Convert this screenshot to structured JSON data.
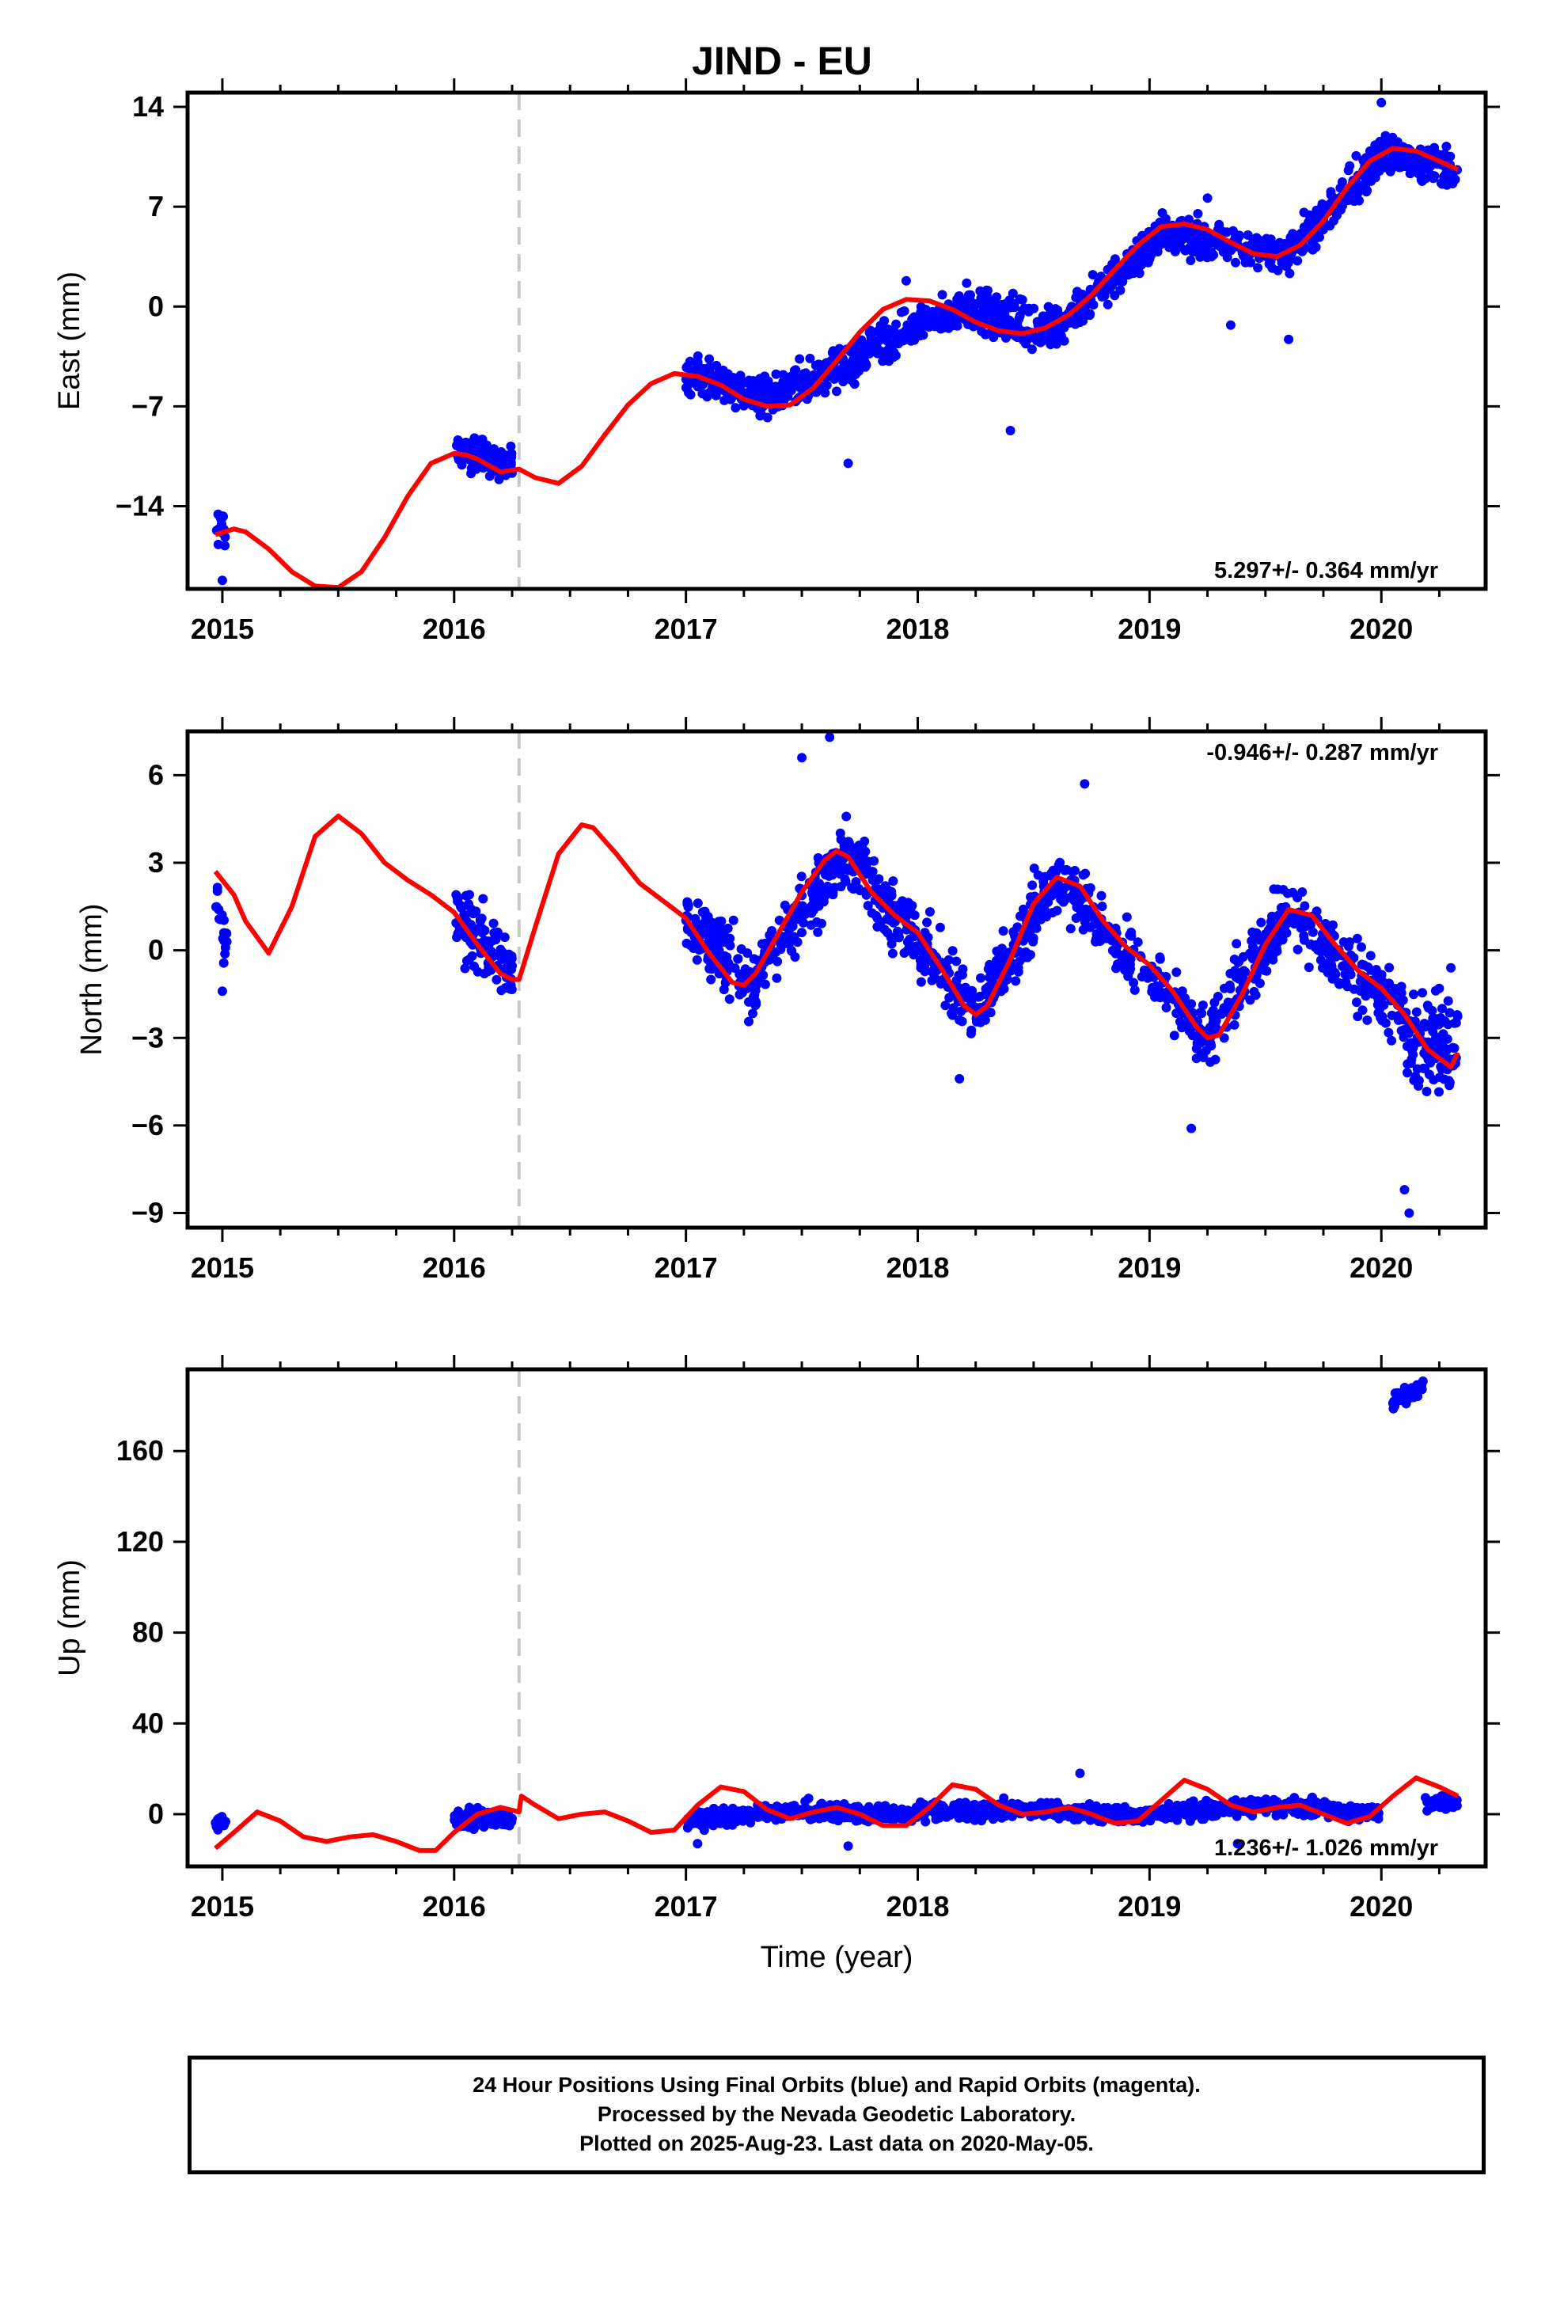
{
  "title": "JIND - EU",
  "footer": {
    "line1": "24 Hour Positions Using Final Orbits (blue) and Rapid Orbits (magenta).",
    "line2": "Processed by the Nevada Geodetic Laboratory.",
    "line3": "Plotted on 2025-Aug-23. Last data on 2020-May-05."
  },
  "colors": {
    "points": "#0000ff",
    "fit": "#ff0000",
    "break": "#c8c8c8",
    "frame": "#000000"
  },
  "chart_data": [
    {
      "type": "scatter",
      "ylabel": "East (mm)",
      "xlabel": "",
      "xlim": [
        2014.85,
        2020.45
      ],
      "ylim": [
        -19.8,
        15.0
      ],
      "yticks": [
        14,
        7,
        0,
        -7,
        -14
      ],
      "ytick_labels": [
        "14",
        "7",
        "0",
        "−7",
        "−14"
      ],
      "xticks": [
        2015,
        2016,
        2017,
        2018,
        2019,
        2020
      ],
      "xtick_labels": [
        "2015",
        "2016",
        "2017",
        "2018",
        "2019",
        "2020"
      ],
      "annotation": "5.297+/- 0.364 mm/yr",
      "annotation_position": "bottom-right",
      "break_line_x": 2016.28,
      "fit_curve": {
        "x": [
          2014.97,
          2015.05,
          2015.1,
          2015.2,
          2015.3,
          2015.4,
          2015.5,
          2015.6,
          2015.7,
          2015.8,
          2015.9,
          2016.0,
          2016.05,
          2016.1,
          2016.2,
          2016.28,
          2016.35,
          2016.45,
          2016.55,
          2016.65,
          2016.75,
          2016.85,
          2016.95,
          2017.05,
          2017.15,
          2017.25,
          2017.35,
          2017.45,
          2017.55,
          2017.65,
          2017.75,
          2017.85,
          2017.95,
          2018.05,
          2018.15,
          2018.25,
          2018.35,
          2018.45,
          2018.55,
          2018.65,
          2018.75,
          2018.85,
          2018.95,
          2019.05,
          2019.15,
          2019.25,
          2019.35,
          2019.45,
          2019.55,
          2019.65,
          2019.75,
          2019.85,
          2019.95,
          2020.05,
          2020.15,
          2020.25,
          2020.33
        ],
        "y": [
          -16.0,
          -15.6,
          -15.8,
          -17.0,
          -18.6,
          -19.6,
          -19.7,
          -18.6,
          -16.2,
          -13.3,
          -11.0,
          -10.3,
          -10.4,
          -10.7,
          -11.6,
          -11.4,
          -12.0,
          -12.4,
          -11.2,
          -9.0,
          -6.9,
          -5.4,
          -4.7,
          -4.9,
          -5.5,
          -6.5,
          -7.0,
          -6.9,
          -5.7,
          -3.8,
          -1.8,
          -0.2,
          0.5,
          0.4,
          -0.2,
          -1.1,
          -1.7,
          -1.9,
          -1.5,
          -0.6,
          0.8,
          2.6,
          4.3,
          5.6,
          5.8,
          5.4,
          4.5,
          3.7,
          3.5,
          4.3,
          6.0,
          8.3,
          10.2,
          11.1,
          10.9,
          10.2,
          9.6
        ]
      },
      "point_groups": [
        {
          "x_range": [
            2014.97,
            2015.02
          ],
          "center": [
            -15.5,
            -15.5
          ],
          "spread": 1.5,
          "count": 18
        },
        {
          "x_range": [
            2016.01,
            2016.25
          ],
          "center": [
            -10.2,
            -11.1
          ],
          "spread": 1.1,
          "count": 120
        },
        {
          "x_range": [
            2017.0,
            2017.35
          ],
          "center": [
            -4.6,
            -6.3
          ],
          "spread": 1.3,
          "count": 150
        },
        {
          "x_range": [
            2017.35,
            2017.75
          ],
          "center": [
            -6.4,
            -3.6
          ],
          "spread": 1.3,
          "count": 170
        },
        {
          "x_range": [
            2017.75,
            2018.2
          ],
          "center": [
            -3.4,
            0.0
          ],
          "spread": 1.3,
          "count": 180
        },
        {
          "x_range": [
            2018.2,
            2018.6
          ],
          "center": [
            -0.2,
            -1.6
          ],
          "spread": 1.5,
          "count": 170
        },
        {
          "x_range": [
            2018.6,
            2019.05
          ],
          "center": [
            -1.5,
            5.0
          ],
          "spread": 1.3,
          "count": 180
        },
        {
          "x_range": [
            2019.05,
            2019.6
          ],
          "center": [
            5.2,
            3.6
          ],
          "spread": 1.2,
          "count": 200
        },
        {
          "x_range": [
            2019.6,
            2020.0
          ],
          "center": [
            3.8,
            10.6
          ],
          "spread": 1.3,
          "count": 180
        },
        {
          "x_range": [
            2020.0,
            2020.33
          ],
          "center": [
            10.8,
            9.4
          ],
          "spread": 1.3,
          "count": 140
        }
      ],
      "outliers": [
        [
          2015.0,
          -19.2
        ],
        [
          2017.7,
          -11.0
        ],
        [
          2018.4,
          -8.7
        ],
        [
          2019.35,
          -1.3
        ],
        [
          2019.6,
          -2.3
        ],
        [
          2017.95,
          1.8
        ],
        [
          2020.0,
          14.3
        ],
        [
          2019.25,
          7.6
        ]
      ]
    },
    {
      "type": "scatter",
      "ylabel": "North (mm)",
      "xlabel": "",
      "xlim": [
        2014.85,
        2020.45
      ],
      "ylim": [
        -9.5,
        7.5
      ],
      "yticks": [
        6,
        3,
        0,
        -3,
        -6,
        -9
      ],
      "ytick_labels": [
        "6",
        "3",
        "0",
        "−3",
        "−6",
        "−9"
      ],
      "xticks": [
        2015,
        2016,
        2017,
        2018,
        2019,
        2020
      ],
      "xtick_labels": [
        "2015",
        "2016",
        "2017",
        "2018",
        "2019",
        "2020"
      ],
      "annotation": "-0.946+/- 0.287 mm/yr",
      "annotation_position": "top-right",
      "break_line_x": 2016.28,
      "fit_curve": {
        "x": [
          2014.97,
          2015.05,
          2015.1,
          2015.2,
          2015.3,
          2015.4,
          2015.5,
          2015.6,
          2015.7,
          2015.8,
          2015.9,
          2016.0,
          2016.1,
          2016.2,
          2016.25,
          2016.28,
          2016.35,
          2016.45,
          2016.55,
          2016.6,
          2016.7,
          2016.8,
          2016.9,
          2017.0,
          2017.1,
          2017.2,
          2017.25,
          2017.3,
          2017.4,
          2017.5,
          2017.6,
          2017.65,
          2017.7,
          2017.8,
          2017.9,
          2018.0,
          2018.1,
          2018.2,
          2018.25,
          2018.3,
          2018.4,
          2018.5,
          2018.6,
          2018.7,
          2018.8,
          2018.9,
          2019.0,
          2019.1,
          2019.2,
          2019.25,
          2019.3,
          2019.4,
          2019.5,
          2019.6,
          2019.7,
          2019.8,
          2019.9,
          2020.0,
          2020.1,
          2020.2,
          2020.3,
          2020.33
        ],
        "y": [
          2.7,
          1.9,
          1.0,
          -0.1,
          1.5,
          3.9,
          4.6,
          4.0,
          3.0,
          2.4,
          1.9,
          1.3,
          0.2,
          -0.8,
          -1.0,
          -1.0,
          0.8,
          3.3,
          4.3,
          4.2,
          3.3,
          2.3,
          1.7,
          1.1,
          -0.1,
          -1.1,
          -1.2,
          -0.8,
          0.6,
          2.0,
          3.1,
          3.4,
          3.2,
          2.0,
          1.2,
          0.6,
          -0.6,
          -1.9,
          -2.2,
          -1.9,
          -0.3,
          1.6,
          2.5,
          2.2,
          1.0,
          0.1,
          -0.5,
          -1.4,
          -2.6,
          -3.0,
          -2.9,
          -1.5,
          0.2,
          1.4,
          1.2,
          0.2,
          -0.7,
          -1.3,
          -2.2,
          -3.4,
          -4.0,
          -3.5
        ]
      },
      "point_groups": [
        {
          "x_range": [
            2014.97,
            2015.02
          ],
          "center": [
            1.5,
            0.0
          ],
          "spread": 1.4,
          "count": 18
        },
        {
          "x_range": [
            2016.0,
            2016.25
          ],
          "center": [
            1.2,
            -0.8
          ],
          "spread": 1.1,
          "count": 110
        },
        {
          "x_range": [
            2017.0,
            2017.3
          ],
          "center": [
            1.1,
            -1.3
          ],
          "spread": 1.1,
          "count": 140
        },
        {
          "x_range": [
            2017.3,
            2017.7
          ],
          "center": [
            -0.8,
            3.4
          ],
          "spread": 1.1,
          "count": 170
        },
        {
          "x_range": [
            2017.7,
            2018.25
          ],
          "center": [
            3.2,
            -2.1
          ],
          "spread": 1.1,
          "count": 200
        },
        {
          "x_range": [
            2018.25,
            2018.6
          ],
          "center": [
            -2.1,
            2.5
          ],
          "spread": 1.1,
          "count": 160
        },
        {
          "x_range": [
            2018.6,
            2019.25
          ],
          "center": [
            2.4,
            -3.0
          ],
          "spread": 1.0,
          "count": 220
        },
        {
          "x_range": [
            2019.25,
            2019.6
          ],
          "center": [
            -3.0,
            1.4
          ],
          "spread": 1.1,
          "count": 150
        },
        {
          "x_range": [
            2019.6,
            2020.1
          ],
          "center": [
            1.3,
            -2.2
          ],
          "spread": 1.1,
          "count": 170
        },
        {
          "x_range": [
            2020.1,
            2020.33
          ],
          "center": [
            -3.0,
            -3.2
          ],
          "spread": 1.6,
          "count": 110
        }
      ],
      "outliers": [
        [
          2015.0,
          -1.4
        ],
        [
          2017.5,
          6.6
        ],
        [
          2017.62,
          7.3
        ],
        [
          2018.72,
          5.7
        ],
        [
          2018.18,
          -4.4
        ],
        [
          2019.18,
          -6.1
        ],
        [
          2020.12,
          -9.0
        ],
        [
          2020.1,
          -8.2
        ],
        [
          2020.3,
          -0.6
        ]
      ]
    },
    {
      "type": "scatter",
      "ylabel": "Up (mm)",
      "xlabel": "Time (year)",
      "xlim": [
        2014.85,
        2020.45
      ],
      "ylim": [
        -23,
        196
      ],
      "yticks": [
        160,
        120,
        80,
        40,
        0
      ],
      "ytick_labels": [
        "160",
        "120",
        "80",
        "40",
        "0"
      ],
      "xticks": [
        2015,
        2016,
        2017,
        2018,
        2019,
        2020
      ],
      "xtick_labels": [
        "2015",
        "2016",
        "2017",
        "2018",
        "2019",
        "2020"
      ],
      "annotation": "1.236+/- 1.026 mm/yr",
      "annotation_position": "bottom-right",
      "break_line_x": 2016.28,
      "fit_curve": {
        "x": [
          2014.97,
          2015.05,
          2015.15,
          2015.25,
          2015.35,
          2015.45,
          2015.55,
          2015.65,
          2015.75,
          2015.85,
          2015.92,
          2016.0,
          2016.1,
          2016.2,
          2016.28,
          2016.29,
          2016.35,
          2016.45,
          2016.55,
          2016.65,
          2016.75,
          2016.85,
          2016.95,
          2017.05,
          2017.15,
          2017.25,
          2017.35,
          2017.45,
          2017.55,
          2017.65,
          2017.75,
          2017.85,
          2017.95,
          2018.05,
          2018.15,
          2018.25,
          2018.35,
          2018.45,
          2018.55,
          2018.65,
          2018.75,
          2018.85,
          2018.95,
          2019.05,
          2019.15,
          2019.25,
          2019.35,
          2019.45,
          2019.55,
          2019.65,
          2019.75,
          2019.85,
          2019.95,
          2020.05,
          2020.15,
          2020.25,
          2020.33
        ],
        "y": [
          -15,
          -8,
          1,
          -3,
          -10,
          -12,
          -10,
          -9,
          -12,
          -16,
          -16,
          -8,
          0,
          3,
          1,
          8,
          4,
          -2,
          0,
          1,
          -3,
          -8,
          -7,
          4,
          12,
          10,
          2,
          -2,
          1,
          3,
          0,
          -5,
          -5,
          3,
          13,
          11,
          4,
          0,
          1,
          3,
          0,
          -4,
          -3,
          6,
          15,
          11,
          4,
          1,
          3,
          4,
          0,
          -4,
          -1,
          8,
          16,
          12,
          8
        ]
      },
      "point_groups": [
        {
          "x_range": [
            2014.97,
            2015.02
          ],
          "center": [
            -4,
            -4
          ],
          "spread": 3.5,
          "count": 18
        },
        {
          "x_range": [
            2016.0,
            2016.25
          ],
          "center": [
            -2,
            -2
          ],
          "spread": 4.0,
          "count": 110
        },
        {
          "x_range": [
            2017.0,
            2017.5
          ],
          "center": [
            -3,
            2
          ],
          "spread": 3.5,
          "count": 220
        },
        {
          "x_range": [
            2017.5,
            2018.0
          ],
          "center": [
            2,
            -1
          ],
          "spread": 3.5,
          "count": 220
        },
        {
          "x_range": [
            2018.0,
            2018.5
          ],
          "center": [
            1,
            2
          ],
          "spread": 3.5,
          "count": 220
        },
        {
          "x_range": [
            2018.5,
            2019.0
          ],
          "center": [
            2,
            -1
          ],
          "spread": 3.5,
          "count": 220
        },
        {
          "x_range": [
            2019.0,
            2019.5
          ],
          "center": [
            0,
            4
          ],
          "spread": 3.5,
          "count": 220
        },
        {
          "x_range": [
            2019.5,
            2020.0
          ],
          "center": [
            4,
            0
          ],
          "spread": 3.5,
          "count": 200
        },
        {
          "x_range": [
            2020.05,
            2020.18
          ],
          "center": [
            182,
            188
          ],
          "spread": 3.5,
          "count": 60
        },
        {
          "x_range": [
            2020.18,
            2020.33
          ],
          "center": [
            5,
            5
          ],
          "spread": 3.0,
          "count": 50
        }
      ],
      "outliers": [
        [
          2017.7,
          -14
        ],
        [
          2018.7,
          18
        ],
        [
          2019.38,
          -13
        ],
        [
          2017.05,
          -13
        ]
      ]
    }
  ]
}
